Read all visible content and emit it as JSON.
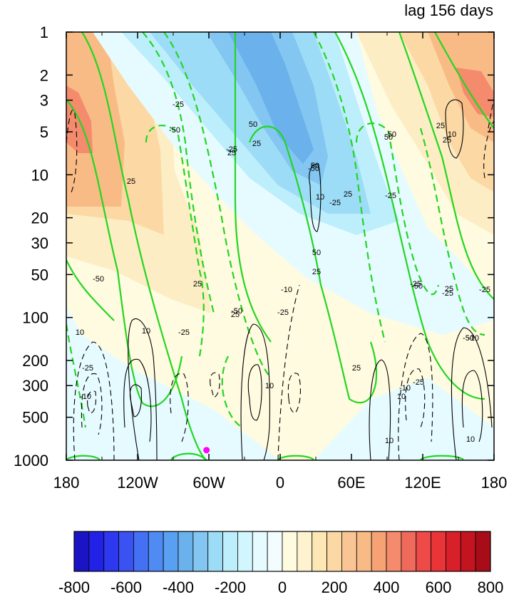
{
  "chart_data": {
    "type": "heatmap",
    "title": "lag 156 days",
    "xlabel": "",
    "ylabel": "",
    "x_tick_labels": [
      "180",
      "120W",
      "60W",
      "0",
      "60E",
      "120E",
      "180"
    ],
    "x_range": [
      -180,
      180
    ],
    "y_tick_labels": [
      "1",
      "2",
      "3",
      "5",
      "10",
      "20",
      "30",
      "50",
      "100",
      "200",
      "300",
      "500",
      "1000"
    ],
    "y_scale": "log",
    "y_range": [
      1,
      1000
    ],
    "y_reversed": true,
    "colorbar_tick_labels": [
      "-800",
      "-600",
      "-400",
      "-200",
      "0",
      "200",
      "400",
      "600",
      "800"
    ],
    "colorbar_range": [
      -800,
      800
    ],
    "colorbar_levels": 28,
    "marker": {
      "x": -62,
      "y": 850,
      "color": "#ff00ff"
    },
    "green_contour_labels": [
      "-25",
      "-50",
      "25",
      "-50",
      "-25",
      "25",
      "-25",
      "-50",
      "-25",
      "50",
      "-50",
      "25",
      "25",
      "-25",
      "25",
      "-50",
      "-25",
      "25",
      "50",
      "-25",
      "25",
      "-50",
      "-25",
      "50",
      "25",
      "-25",
      "25",
      "-25",
      "50",
      "-50",
      "-25",
      "25",
      "25"
    ],
    "black_contour_labels": [
      "10",
      "10",
      "10",
      "-10",
      "10",
      "10",
      "-10",
      "10",
      "-10",
      "10",
      "-10",
      "10"
    ],
    "colors": {
      "contour_green": "#22d622",
      "contour_black": "#000000",
      "marker": "#ff00ff"
    }
  }
}
